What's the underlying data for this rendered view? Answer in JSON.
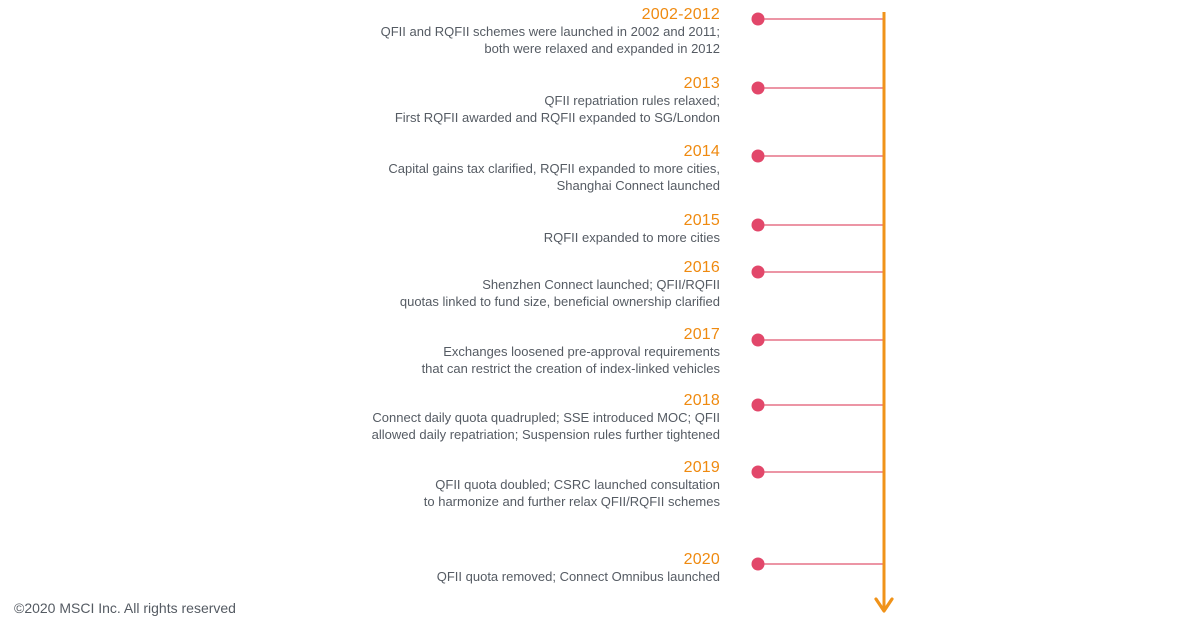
{
  "colors": {
    "year": "#ef8a10",
    "axis": "#f0931a",
    "connector": "#e0566f",
    "dot": "#e2476a",
    "text": "#555b63"
  },
  "events": [
    {
      "year": "2002-2012",
      "lines": [
        "QFII and RQFII schemes were launched in 2002 and 2011;",
        "both were relaxed and expanded in 2012"
      ]
    },
    {
      "year": "2013",
      "lines": [
        "QFII repatriation rules relaxed;",
        "First RQFII awarded and RQFII expanded to SG/London"
      ]
    },
    {
      "year": "2014",
      "lines": [
        "Capital gains tax clarified, RQFII expanded to more cities,",
        "Shanghai Connect launched"
      ]
    },
    {
      "year": "2015",
      "lines": [
        "RQFII expanded to more cities"
      ]
    },
    {
      "year": "2016",
      "lines": [
        "Shenzhen Connect launched; QFII/RQFII",
        "quotas linked to fund size, beneficial ownership clarified"
      ]
    },
    {
      "year": "2017",
      "lines": [
        "Exchanges loosened pre-approval requirements",
        "that can restrict the creation of index-linked vehicles"
      ]
    },
    {
      "year": "2018",
      "lines": [
        "Connect daily quota quadrupled; SSE introduced MOC; QFII",
        "allowed daily repatriation; Suspension rules further tightened"
      ]
    },
    {
      "year": "2019",
      "lines": [
        "QFII quota doubled; CSRC launched consultation",
        "to harmonize and further relax QFII/RQFII schemes"
      ]
    },
    {
      "year": "2020",
      "lines": [
        "QFII quota removed; Connect Omnibus launched"
      ]
    }
  ],
  "footer": {
    "copyright": "©2020 MSCI Inc. All rights reserved"
  }
}
